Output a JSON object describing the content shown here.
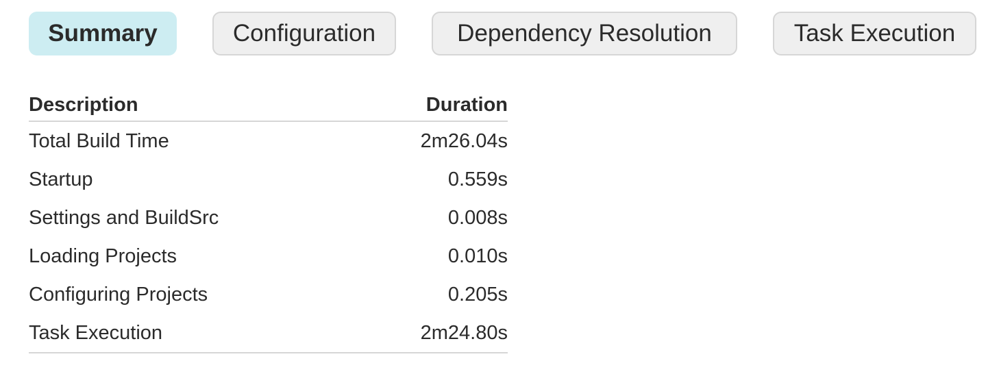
{
  "tabs": [
    {
      "label": "Summary",
      "active": true
    },
    {
      "label": "Configuration"
    },
    {
      "label": "Dependency Resolution"
    },
    {
      "label": "Task Execution"
    }
  ],
  "table": {
    "headers": [
      "Description",
      "Duration"
    ],
    "rows": [
      [
        "Total Build Time",
        "2m26.04s"
      ],
      [
        "Startup",
        "0.559s"
      ],
      [
        "Settings and BuildSrc",
        "0.008s"
      ],
      [
        "Loading Projects",
        "0.010s"
      ],
      [
        "Configuring Projects",
        "0.205s"
      ],
      [
        "Task Execution",
        "2m24.80s"
      ]
    ]
  },
  "colors": {
    "active_tab": "#cdedf2",
    "inactive_tab": "#efefef"
  }
}
